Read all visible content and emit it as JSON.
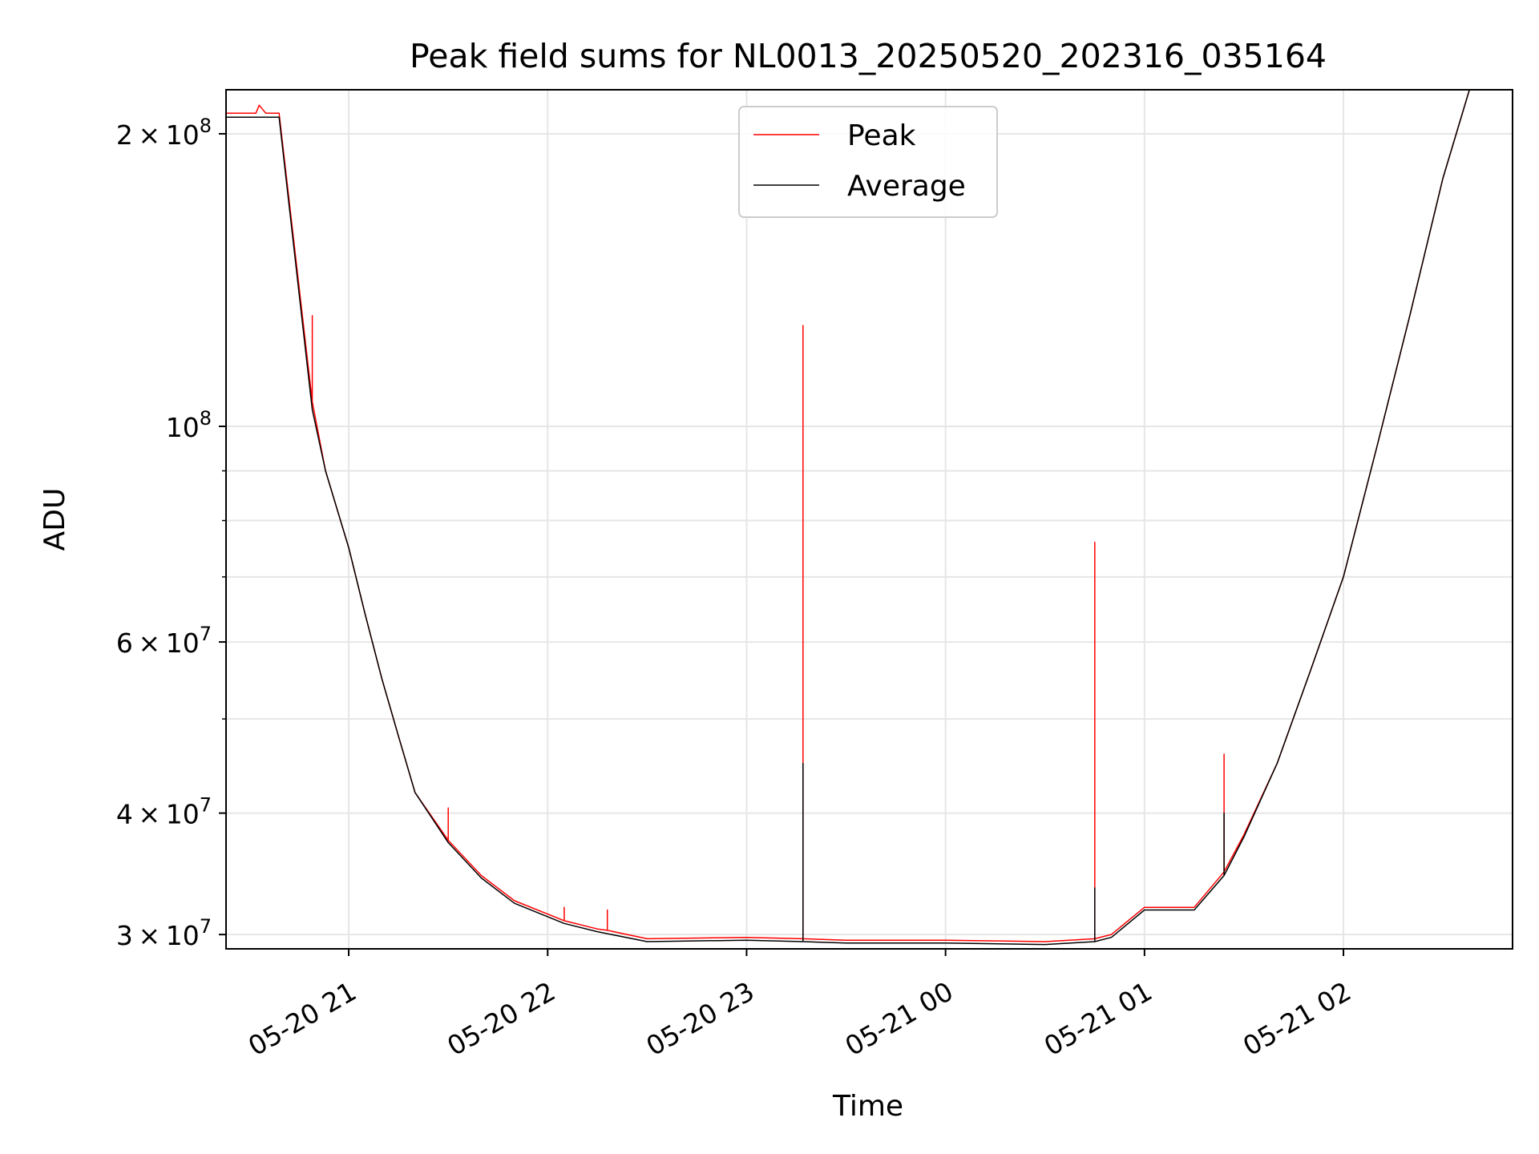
{
  "chart_data": {
    "type": "line",
    "title": "Peak field sums for NL0013_20250520_202316_035164",
    "xlabel": "Time",
    "ylabel": "ADU",
    "y_scale": "log",
    "ylim": [
      29000000.0,
      222000000.0
    ],
    "xlim": [
      "2025-05-20 20:23",
      "2025-05-21 02:51"
    ],
    "x_ticks": [
      "2025-05-20 21:00",
      "2025-05-20 22:00",
      "2025-05-20 23:00",
      "2025-05-21 00:00",
      "2025-05-21 01:00",
      "2025-05-21 02:00"
    ],
    "x_tick_labels": [
      "05-20 21",
      "05-20 22",
      "05-20 23",
      "05-21 00",
      "05-21 01",
      "05-21 02"
    ],
    "y_ticks_major": [
      {
        "value": 30000000.0,
        "mantissa": "3",
        "base": "10",
        "exp": "7"
      },
      {
        "value": 40000000.0,
        "mantissa": "4",
        "base": "10",
        "exp": "7"
      },
      {
        "value": 60000000.0,
        "mantissa": "6",
        "base": "10",
        "exp": "7"
      },
      {
        "value": 100000000.0,
        "mantissa": "",
        "base": "10",
        "exp": "8"
      },
      {
        "value": 200000000.0,
        "mantissa": "2",
        "base": "10",
        "exp": "8"
      }
    ],
    "y_ticks_minor": [
      50000000.0,
      70000000.0,
      80000000.0,
      90000000.0
    ],
    "grid": true,
    "legend_position": "upper-center",
    "series": [
      {
        "name": "Peak",
        "color": "#ff0000",
        "x": [
          "2025-05-20 20:23",
          "2025-05-20 20:32",
          "2025-05-20 20:33",
          "2025-05-20 20:35",
          "2025-05-20 20:39",
          "2025-05-20 20:49",
          "2025-05-20 20:49",
          "2025-05-20 20:49",
          "2025-05-20 20:53",
          "2025-05-20 21:00",
          "2025-05-20 21:05",
          "2025-05-20 21:10",
          "2025-05-20 21:15",
          "2025-05-20 21:20",
          "2025-05-20 21:30",
          "2025-05-20 21:30",
          "2025-05-20 21:30",
          "2025-05-20 21:40",
          "2025-05-20 21:50",
          "2025-05-20 22:05",
          "2025-05-20 22:05",
          "2025-05-20 22:05",
          "2025-05-20 22:15",
          "2025-05-20 22:18",
          "2025-05-20 22:18",
          "2025-05-20 22:18",
          "2025-05-20 22:30",
          "2025-05-20 23:00",
          "2025-05-20 23:17",
          "2025-05-20 23:17",
          "2025-05-20 23:17",
          "2025-05-20 23:30",
          "2025-05-21 00:00",
          "2025-05-21 00:30",
          "2025-05-21 00:45",
          "2025-05-21 00:45",
          "2025-05-21 00:45",
          "2025-05-21 00:50",
          "2025-05-21 01:00",
          "2025-05-21 01:15",
          "2025-05-21 01:24",
          "2025-05-21 01:24",
          "2025-05-21 01:24",
          "2025-05-21 01:30",
          "2025-05-21 01:40",
          "2025-05-21 01:50",
          "2025-05-21 02:00",
          "2025-05-21 02:10",
          "2025-05-21 02:20",
          "2025-05-21 02:30",
          "2025-05-21 02:38"
        ],
        "y": [
          210000000.0,
          210000000.0,
          214000000.0,
          210000000.0,
          210000000.0,
          106000000.0,
          130000000.0,
          106000000.0,
          90000000.0,
          75000000.0,
          64000000.0,
          55000000.0,
          48000000.0,
          42000000.0,
          37500000.0,
          40500000.0,
          37500000.0,
          34500000.0,
          32500000.0,
          31000000.0,
          32000000.0,
          31000000.0,
          30400000.0,
          30300000.0,
          31800000.0,
          30300000.0,
          29700000.0,
          29800000.0,
          29700000.0,
          127000000.0,
          29700000.0,
          29600000.0,
          29600000.0,
          29500000.0,
          29700000.0,
          76000000.0,
          29700000.0,
          30000000.0,
          32000000.0,
          32000000.0,
          34800000.0,
          46000000.0,
          34800000.0,
          38000000.0,
          45000000.0,
          56000000.0,
          70000000.0,
          95000000.0,
          130000000.0,
          180000000.0,
          222000000.0
        ]
      },
      {
        "name": "Average",
        "color": "#000000",
        "x": [
          "2025-05-20 20:23",
          "2025-05-20 20:32",
          "2025-05-20 20:35",
          "2025-05-20 20:39",
          "2025-05-20 20:49",
          "2025-05-20 20:53",
          "2025-05-20 21:00",
          "2025-05-20 21:05",
          "2025-05-20 21:10",
          "2025-05-20 21:15",
          "2025-05-20 21:20",
          "2025-05-20 21:30",
          "2025-05-20 21:40",
          "2025-05-20 21:50",
          "2025-05-20 22:05",
          "2025-05-20 22:15",
          "2025-05-20 22:30",
          "2025-05-20 23:00",
          "2025-05-20 23:17",
          "2025-05-20 23:17",
          "2025-05-20 23:17",
          "2025-05-20 23:30",
          "2025-05-21 00:00",
          "2025-05-21 00:30",
          "2025-05-21 00:45",
          "2025-05-21 00:45",
          "2025-05-21 00:45",
          "2025-05-21 00:50",
          "2025-05-21 01:00",
          "2025-05-21 01:15",
          "2025-05-21 01:24",
          "2025-05-21 01:24",
          "2025-05-21 01:24",
          "2025-05-21 01:30",
          "2025-05-21 01:40",
          "2025-05-21 01:50",
          "2025-05-21 02:00",
          "2025-05-21 02:10",
          "2025-05-21 02:20",
          "2025-05-21 02:30",
          "2025-05-21 02:38"
        ],
        "y": [
          208000000.0,
          208000000.0,
          208000000.0,
          208000000.0,
          104000000.0,
          90000000.0,
          75000000.0,
          64000000.0,
          55000000.0,
          48000000.0,
          42000000.0,
          37300000.0,
          34300000.0,
          32300000.0,
          30800000.0,
          30200000.0,
          29500000.0,
          29600000.0,
          29500000.0,
          45000000.0,
          29500000.0,
          29400000.0,
          29400000.0,
          29300000.0,
          29500000.0,
          33500000.0,
          29500000.0,
          29800000.0,
          31800000.0,
          31800000.0,
          34500000.0,
          40000000.0,
          34500000.0,
          37800000.0,
          45000000.0,
          56000000.0,
          70000000.0,
          95000000.0,
          130000000.0,
          180000000.0,
          222000000.0
        ]
      }
    ]
  }
}
